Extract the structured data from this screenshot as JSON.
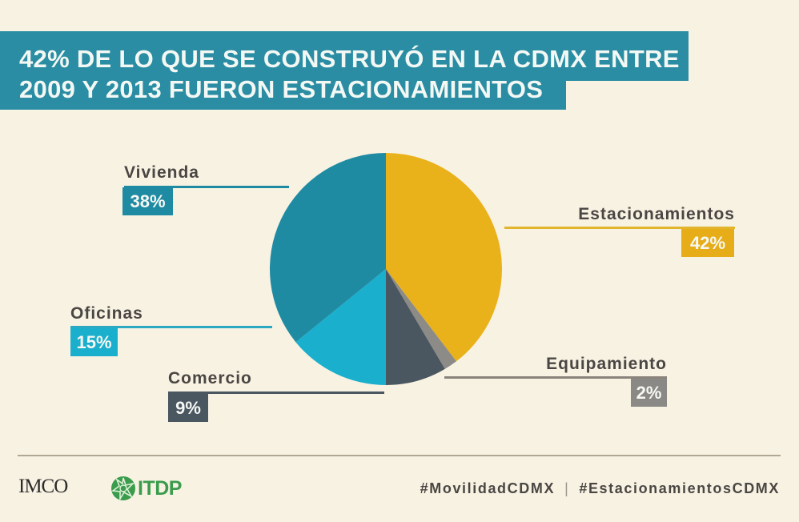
{
  "title": {
    "line1": "42% DE LO QUE SE CONSTRUYÓ EN LA CDMX ENTRE",
    "line2": "2009 Y 2013 FUERON ESTACIONAMIENTOS"
  },
  "chart_data": {
    "type": "pie",
    "title": "42% DE LO QUE SE CONSTRUYÓ EN LA CDMX ENTRE 2009 Y 2013 FUERON ESTACIONAMIENTOS",
    "start_angle": "12 o'clock",
    "direction": "clockwise",
    "categories": [
      "Estacionamientos",
      "Equipamiento",
      "Comercio",
      "Oficinas",
      "Vivienda"
    ],
    "values": [
      42,
      2,
      9,
      15,
      38
    ],
    "labels": [
      "42%",
      "2%",
      "9%",
      "15%",
      "38%"
    ],
    "colors": [
      "#e9b21a",
      "#8c8b88",
      "#4a5660",
      "#1aafcd",
      "#1f8ba3"
    ],
    "unit": "%"
  },
  "footer": {
    "logo_imco": "IMCO",
    "logo_itdp": "ITDP",
    "hashtag1": "#MovilidadCDMX",
    "separator": "|",
    "hashtag2": "#EstacionamientosCDMX"
  }
}
